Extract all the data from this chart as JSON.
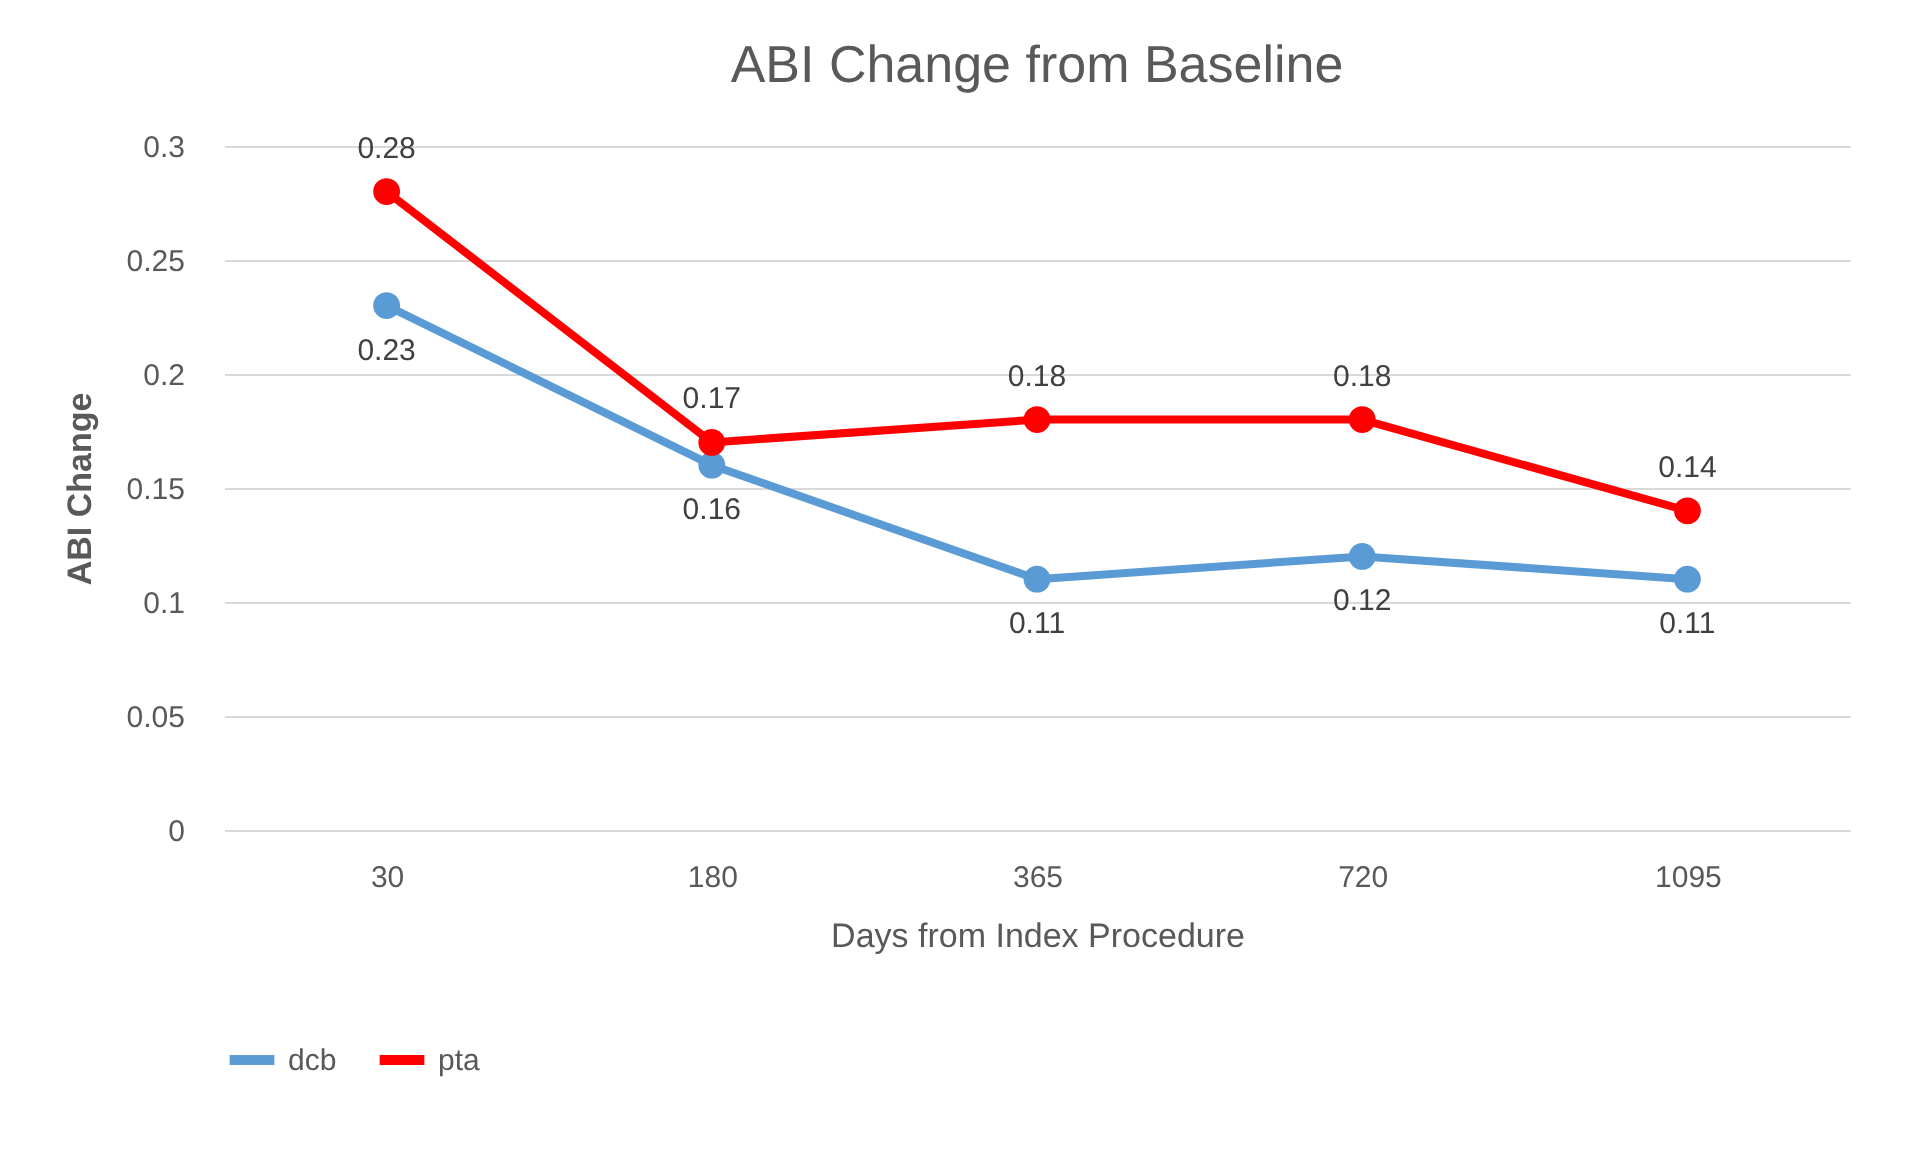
{
  "chart_data": {
    "type": "line",
    "title": "ABI Change from Baseline",
    "xlabel": "Days from Index Procedure",
    "ylabel": "ABI Change",
    "categories": [
      "30",
      "180",
      "365",
      "720",
      "1095"
    ],
    "series": [
      {
        "name": "dcb",
        "color": "#5b9bd5",
        "values": [
          0.23,
          0.16,
          0.11,
          0.12,
          0.11
        ]
      },
      {
        "name": "pta",
        "color": "#ff0000",
        "values": [
          0.28,
          0.17,
          0.18,
          0.18,
          0.14
        ]
      }
    ],
    "ylim": [
      0,
      0.3
    ],
    "yticks": [
      0,
      0.05,
      0.1,
      0.15,
      0.2,
      0.25,
      0.3
    ],
    "grid": "y",
    "legend": "bottom",
    "marker": "circle",
    "line_style": "solid",
    "data_labels": true
  }
}
